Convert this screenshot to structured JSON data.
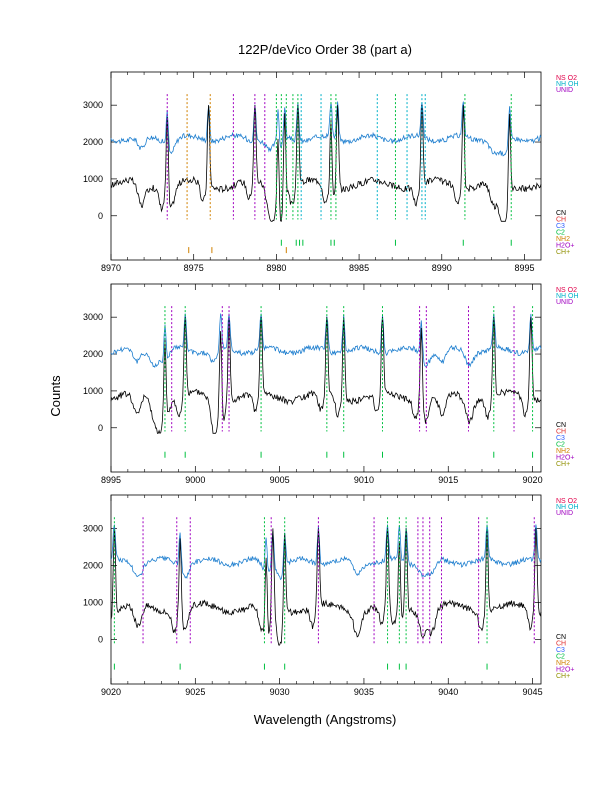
{
  "title": "122P/deVico Order 38 (part a)",
  "xlabel": "Wavelength (Angstroms)",
  "ylabel": "Counts",
  "colors": {
    "spectrum": "#000000",
    "model": "#1f7fcf",
    "unid": "#a000c0",
    "ns_o2": "#e0004a",
    "nh_oh": "#00b0c8",
    "cn": "#000000",
    "ch": "#e03030",
    "c3": "#3060ff",
    "c2": "#00c040",
    "nh2": "#d08000",
    "h2o_plus": "#a000c0",
    "ch_plus": "#909000"
  },
  "legend_top": [
    {
      "label": "NS O2",
      "key": "ns_o2"
    },
    {
      "label": "NH OH",
      "key": "nh_oh"
    },
    {
      "label": "UNID",
      "key": "unid"
    }
  ],
  "legend_bottom": [
    {
      "label": "CN",
      "key": "cn"
    },
    {
      "label": "CH",
      "key": "ch"
    },
    {
      "label": "C3",
      "key": "c3"
    },
    {
      "label": "C2",
      "key": "c2"
    },
    {
      "label": "NH2",
      "key": "nh2"
    },
    {
      "label": "H2O+",
      "key": "h2o_plus"
    },
    {
      "label": "CH+",
      "key": "ch_plus"
    }
  ],
  "chart_data": [
    {
      "type": "line",
      "panel": "1",
      "xlim": [
        8970,
        8996
      ],
      "ylim": [
        -1200,
        3900
      ],
      "xticks": [
        8970,
        8975,
        8980,
        8985,
        8990,
        8995
      ],
      "xtick_labels": [
        "8970",
        "8975",
        "8980",
        "8985",
        "8990",
        "8995"
      ],
      "yticks": [
        0,
        1000,
        2000,
        3000
      ],
      "ytick_labels": [
        "0",
        "1000",
        "2000",
        "3000"
      ],
      "emission_peaks": [
        8973.4,
        8975.9,
        8978.7,
        8980.1,
        8980.5,
        8981.3,
        8983.3,
        8983.7,
        8988.8,
        8991.3,
        8994.1
      ],
      "lines": [
        {
          "x": 8973.4,
          "species": "unid"
        },
        {
          "x": 8974.6,
          "species": "nh2"
        },
        {
          "x": 8976.0,
          "species": "nh2"
        },
        {
          "x": 8977.4,
          "species": "unid"
        },
        {
          "x": 8978.7,
          "species": "unid"
        },
        {
          "x": 8979.3,
          "species": "unid"
        },
        {
          "x": 8980.0,
          "species": "c2"
        },
        {
          "x": 8980.3,
          "species": "c2"
        },
        {
          "x": 8980.6,
          "species": "c2"
        },
        {
          "x": 8981.0,
          "species": "c2"
        },
        {
          "x": 8981.3,
          "species": "c2"
        },
        {
          "x": 8981.5,
          "species": "nh_oh"
        },
        {
          "x": 8982.7,
          "species": "nh_oh"
        },
        {
          "x": 8983.3,
          "species": "c2"
        },
        {
          "x": 8983.6,
          "species": "c2"
        },
        {
          "x": 8986.1,
          "species": "nh_oh"
        },
        {
          "x": 8987.2,
          "species": "c2"
        },
        {
          "x": 8987.9,
          "species": "nh_oh"
        },
        {
          "x": 8988.8,
          "species": "nh_oh"
        },
        {
          "x": 8989.0,
          "species": "nh_oh"
        },
        {
          "x": 8991.4,
          "species": "c2"
        },
        {
          "x": 8994.2,
          "species": "c2"
        }
      ],
      "ticks_below": [
        {
          "x": 8974.7,
          "species": "nh2"
        },
        {
          "x": 8976.1,
          "species": "nh2"
        },
        {
          "x": 8980.3,
          "species": "c2"
        },
        {
          "x": 8980.6,
          "species": "nh2"
        },
        {
          "x": 8981.2,
          "species": "c2"
        },
        {
          "x": 8981.4,
          "species": "c2"
        },
        {
          "x": 8981.6,
          "species": "c2"
        },
        {
          "x": 8983.3,
          "species": "c2"
        },
        {
          "x": 8983.5,
          "species": "c2"
        },
        {
          "x": 8987.2,
          "species": "c2"
        },
        {
          "x": 8991.3,
          "species": "c2"
        },
        {
          "x": 8994.2,
          "species": "c2"
        }
      ]
    },
    {
      "type": "line",
      "panel": "2",
      "xlim": [
        8995,
        9020.5
      ],
      "ylim": [
        -1200,
        3900
      ],
      "xticks": [
        8995,
        9000,
        9005,
        9010,
        9015,
        9020
      ],
      "xtick_labels": [
        "8995",
        "9000",
        "9005",
        "9010",
        "9015",
        "9020"
      ],
      "yticks": [
        0,
        1000,
        2000,
        3000
      ],
      "ytick_labels": [
        "0",
        "1000",
        "2000",
        "3000"
      ],
      "emission_peaks": [
        8998.2,
        8999.4,
        9001.5,
        9002.0,
        9003.9,
        9007.8,
        9008.8,
        9011.1,
        9013.4,
        9017.7,
        9019.9
      ],
      "lines": [
        {
          "x": 8998.2,
          "species": "c2"
        },
        {
          "x": 8998.6,
          "species": "unid"
        },
        {
          "x": 8999.4,
          "species": "c2"
        },
        {
          "x": 9001.6,
          "species": "unid"
        },
        {
          "x": 9002.0,
          "species": "unid"
        },
        {
          "x": 9003.9,
          "species": "c2"
        },
        {
          "x": 9007.8,
          "species": "c2"
        },
        {
          "x": 9008.8,
          "species": "c2"
        },
        {
          "x": 9011.1,
          "species": "c2"
        },
        {
          "x": 9013.3,
          "species": "unid"
        },
        {
          "x": 9013.7,
          "species": "unid"
        },
        {
          "x": 9016.2,
          "species": "unid"
        },
        {
          "x": 9017.7,
          "species": "c2"
        },
        {
          "x": 9018.9,
          "species": "unid"
        },
        {
          "x": 9020.0,
          "species": "c2"
        }
      ],
      "ticks_below": [
        {
          "x": 8998.2,
          "species": "c2"
        },
        {
          "x": 8999.4,
          "species": "c2"
        },
        {
          "x": 9003.9,
          "species": "c2"
        },
        {
          "x": 9007.8,
          "species": "c2"
        },
        {
          "x": 9008.8,
          "species": "c2"
        },
        {
          "x": 9011.1,
          "species": "c2"
        },
        {
          "x": 9017.7,
          "species": "c2"
        },
        {
          "x": 9020.0,
          "species": "c2"
        }
      ]
    },
    {
      "type": "line",
      "panel": "3",
      "xlim": [
        9020,
        9045.5
      ],
      "ylim": [
        -1200,
        3900
      ],
      "xticks": [
        9020,
        9025,
        9030,
        9035,
        9040,
        9045
      ],
      "xtick_labels": [
        "9020",
        "9025",
        "9030",
        "9035",
        "9040",
        "9045"
      ],
      "yticks": [
        0,
        1000,
        2000,
        3000
      ],
      "ytick_labels": [
        "0",
        "1000",
        "2000",
        "3000"
      ],
      "emission_peaks": [
        9020.2,
        9024.1,
        9029.2,
        9029.6,
        9030.3,
        9032.3,
        9036.4,
        9037.1,
        9037.5,
        9042.3,
        9045.2
      ],
      "lines": [
        {
          "x": 9020.2,
          "species": "c2"
        },
        {
          "x": 9021.9,
          "species": "unid"
        },
        {
          "x": 9023.9,
          "species": "unid"
        },
        {
          "x": 9024.7,
          "species": "unid"
        },
        {
          "x": 9029.1,
          "species": "c2"
        },
        {
          "x": 9029.5,
          "species": "unid"
        },
        {
          "x": 9030.3,
          "species": "c2"
        },
        {
          "x": 9032.3,
          "species": "unid"
        },
        {
          "x": 9035.6,
          "species": "unid"
        },
        {
          "x": 9036.4,
          "species": "c2"
        },
        {
          "x": 9037.1,
          "species": "c2"
        },
        {
          "x": 9037.5,
          "species": "c2"
        },
        {
          "x": 9038.2,
          "species": "unid"
        },
        {
          "x": 9038.5,
          "species": "unid"
        },
        {
          "x": 9038.9,
          "species": "unid"
        },
        {
          "x": 9039.6,
          "species": "unid"
        },
        {
          "x": 9041.8,
          "species": "unid"
        },
        {
          "x": 9042.3,
          "species": "c2"
        },
        {
          "x": 9045.1,
          "species": "unid"
        }
      ],
      "ticks_below": [
        {
          "x": 9020.2,
          "species": "c2"
        },
        {
          "x": 9024.1,
          "species": "c2"
        },
        {
          "x": 9029.1,
          "species": "c2"
        },
        {
          "x": 9030.3,
          "species": "c2"
        },
        {
          "x": 9036.4,
          "species": "c2"
        },
        {
          "x": 9037.1,
          "species": "c2"
        },
        {
          "x": 9037.5,
          "species": "c2"
        },
        {
          "x": 9042.3,
          "species": "c2"
        }
      ]
    }
  ]
}
